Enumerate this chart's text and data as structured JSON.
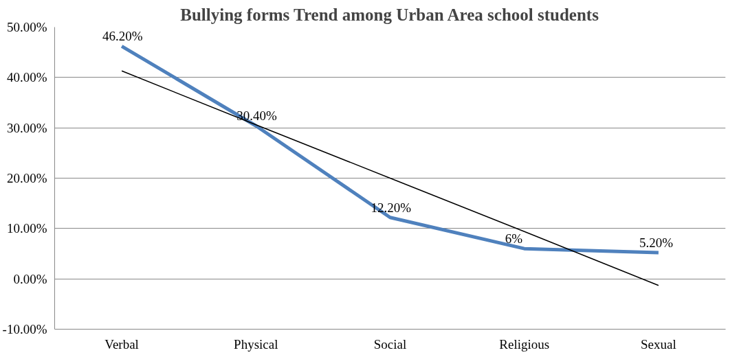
{
  "chart_data": {
    "type": "line",
    "title": "Bullying forms Trend among Urban Area school students",
    "categories": [
      "Verbal",
      "Physical",
      "Social",
      "Religious",
      "Sexual"
    ],
    "series": [
      {
        "color": "#4f81bd",
        "values": [
          46.2,
          30.4,
          12.2,
          6,
          5.2
        ],
        "value_labels": [
          "46.20%",
          "30.40%",
          "12.20%",
          "6%",
          "5.20%"
        ]
      },
      {
        "type": "line",
        "color": "#000000",
        "values": [
          41.3,
          30.6,
          20,
          9.4,
          -1.3
        ]
      }
    ],
    "ylim": [
      -10,
      50
    ],
    "yticks": [
      {
        "value": -10,
        "label": "-10.00%"
      },
      {
        "value": 0,
        "label": "0.00%"
      },
      {
        "value": 10,
        "label": "10.00%"
      },
      {
        "value": 20,
        "label": "20.00%"
      },
      {
        "value": 30,
        "label": "30.00%"
      },
      {
        "value": 40,
        "label": "40.00%"
      },
      {
        "value": 50,
        "label": "50.00%"
      }
    ],
    "grid": "y",
    "marker": "none",
    "line_style": "solid"
  }
}
